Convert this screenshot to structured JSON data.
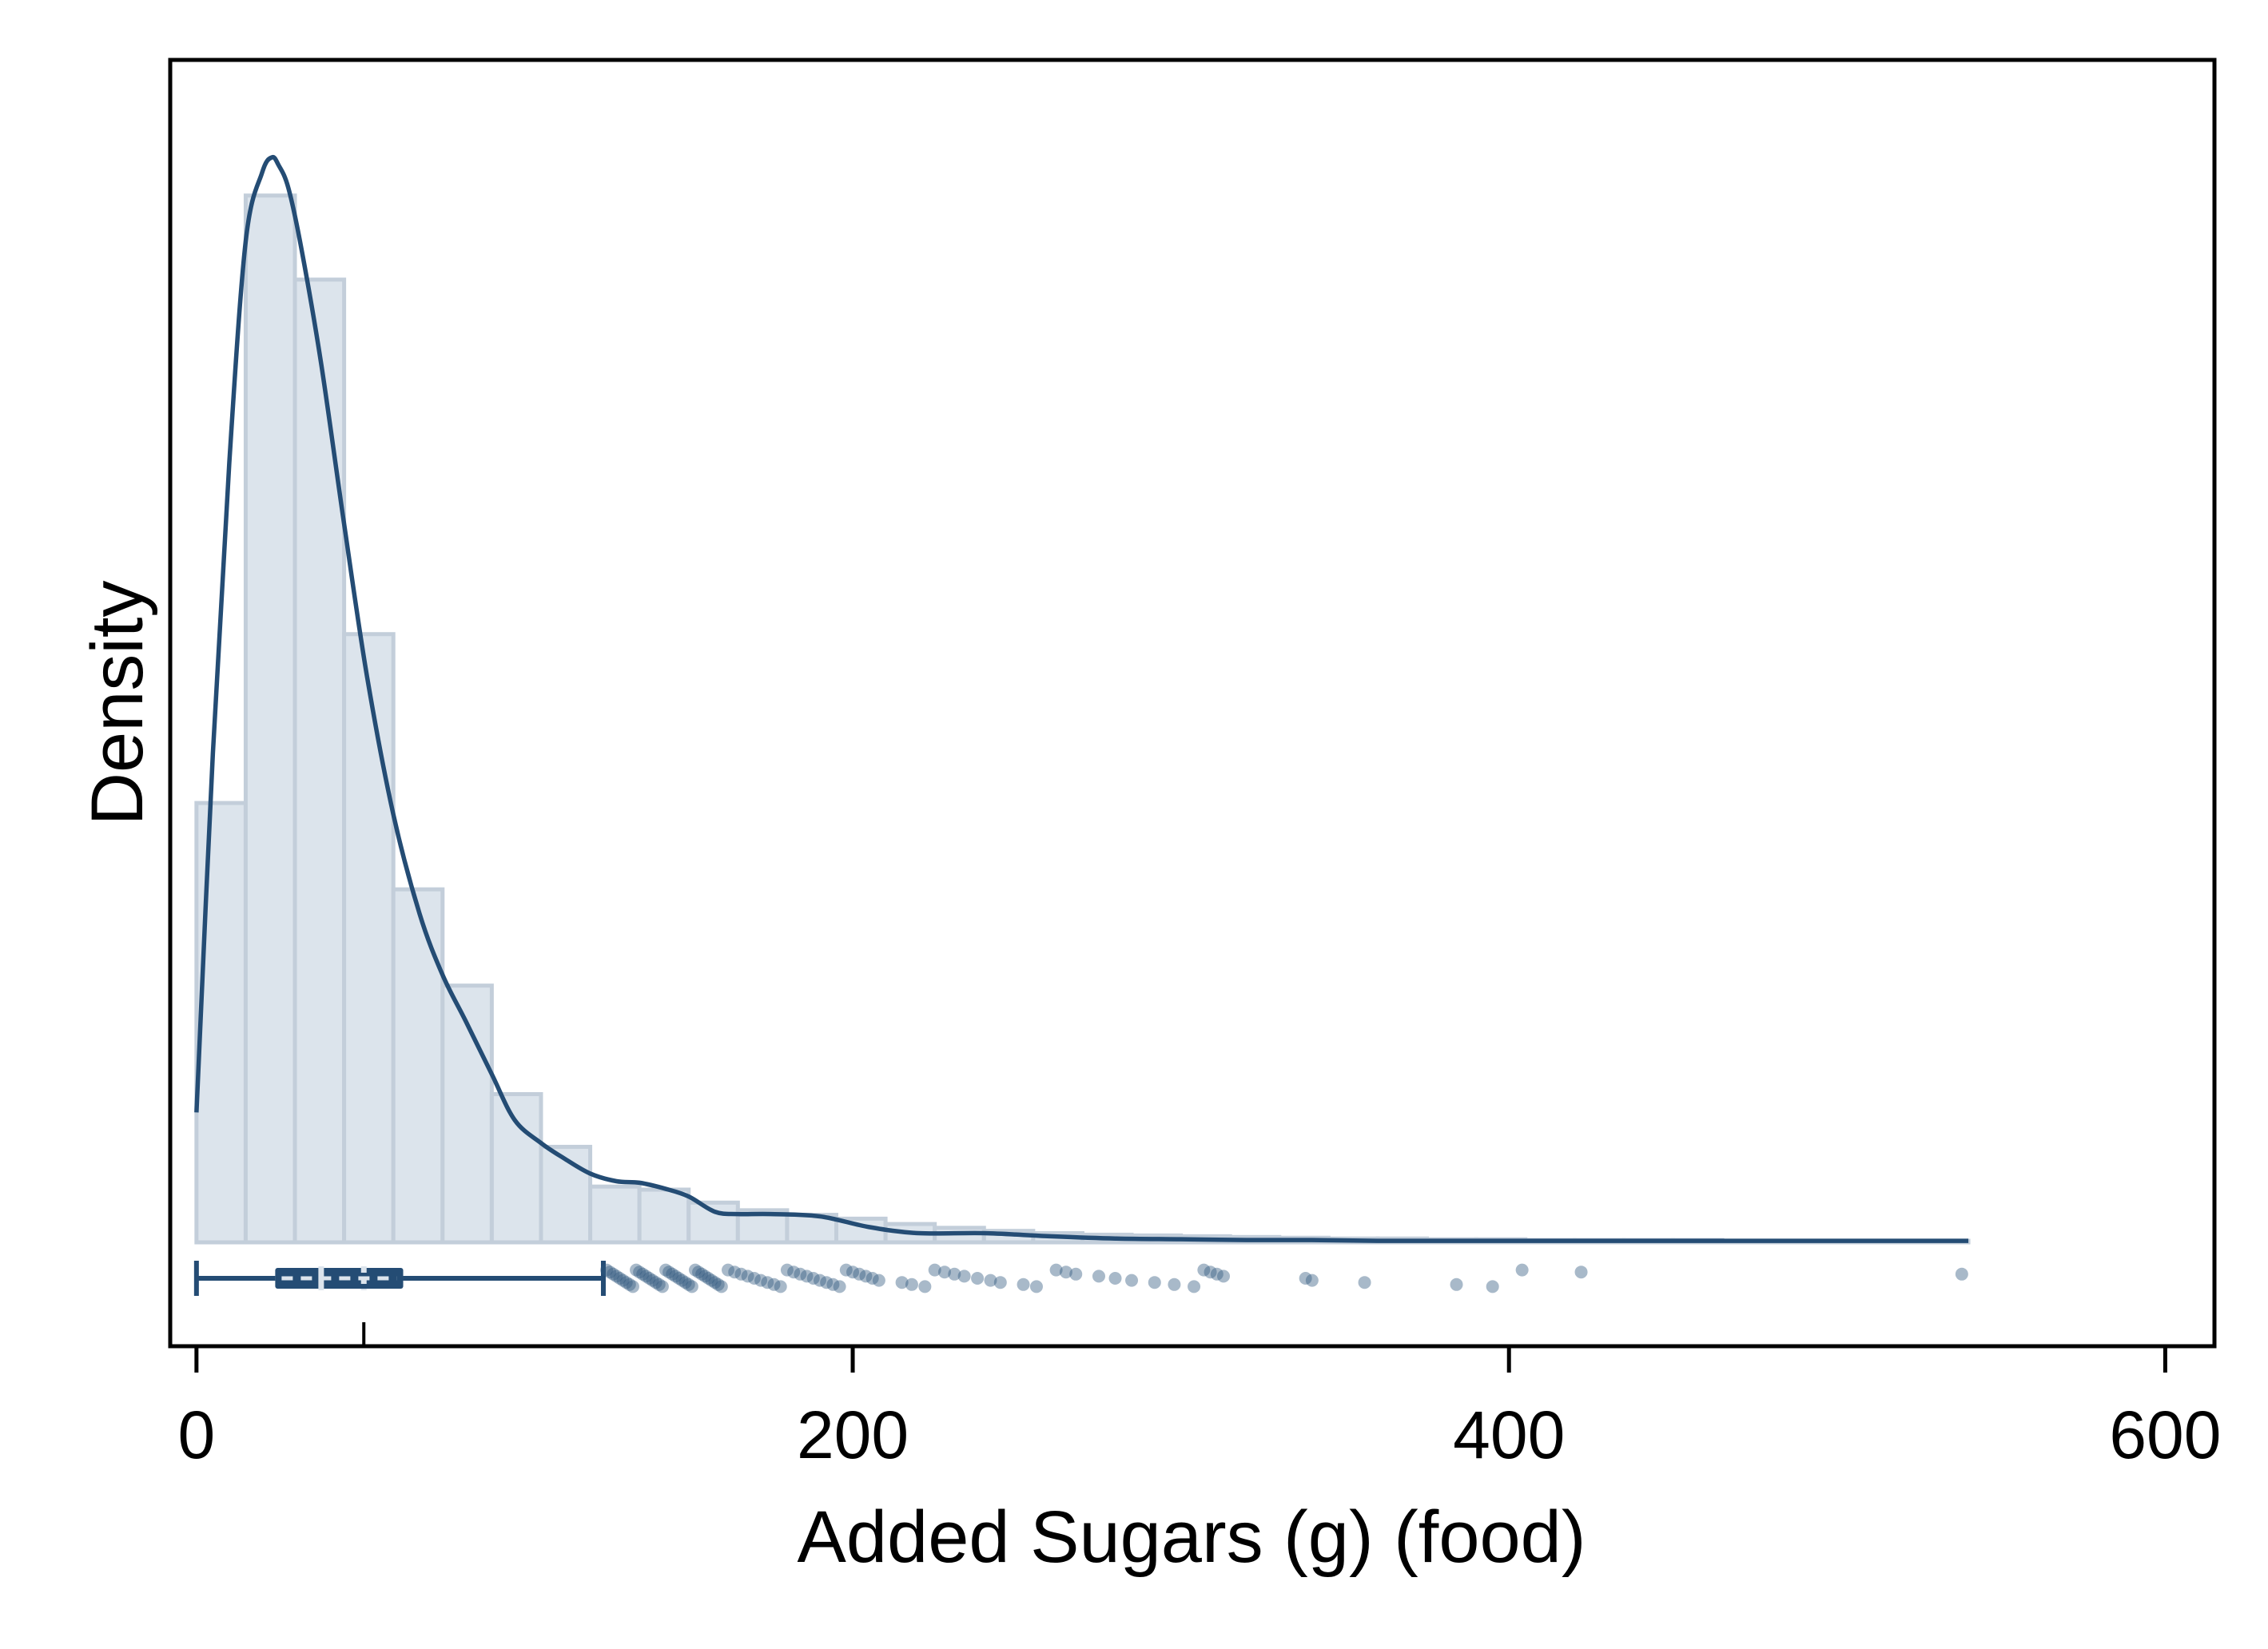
{
  "chart_data": {
    "type": "histogram",
    "title": "",
    "xlabel": "Added Sugars (g) (food)",
    "ylabel": "Density",
    "xlim": [
      -8,
      615
    ],
    "x_ticks": [
      0,
      200,
      400,
      600
    ],
    "x_tick_labels": [
      "0",
      "200",
      "400",
      "600"
    ],
    "y_ticks_shown": false,
    "grid": false,
    "colors": {
      "bar_fill": "#dce4ec",
      "bar_stroke": "#c3ceda",
      "line": "#244c74",
      "outlier": "#2f577f"
    },
    "histogram": {
      "bin_edges": [
        0,
        15,
        30,
        45,
        60,
        75,
        90,
        105,
        120,
        135,
        150,
        165,
        180,
        195,
        210,
        225,
        240,
        255,
        270,
        285,
        300,
        315,
        330,
        345,
        360,
        375,
        390,
        405,
        420,
        435,
        450,
        465,
        480,
        495,
        510,
        525,
        540
      ],
      "density": [
        0.00575,
        0.0137,
        0.0126,
        0.00796,
        0.00462,
        0.00336,
        0.00194,
        0.00125,
        0.00073,
        0.00069,
        0.00052,
        0.00042,
        0.00036,
        0.00031,
        0.00024,
        0.00019,
        0.00015,
        0.00012,
        0.0001,
        9e-05,
        8e-05,
        7e-05,
        6e-05,
        5e-05,
        5e-05,
        4e-05,
        4e-05,
        3e-05,
        3e-05,
        3e-05,
        3e-05,
        2e-05,
        2e-05,
        2e-05,
        2e-05,
        2e-05
      ]
    },
    "kde": {
      "x": [
        0,
        5,
        10,
        15,
        20,
        23,
        25,
        28,
        32,
        38,
        45,
        52,
        60,
        68,
        75,
        82,
        90,
        97,
        105,
        112,
        120,
        128,
        135,
        143,
        150,
        158,
        165,
        175,
        190,
        205,
        220,
        240,
        260,
        280,
        300,
        320,
        340,
        360,
        380,
        400,
        420,
        440,
        480,
        520,
        540
      ],
      "y": [
        0.0017,
        0.0064,
        0.0102,
        0.0131,
        0.014,
        0.0142,
        0.0141,
        0.0138,
        0.013,
        0.0115,
        0.0094,
        0.0074,
        0.0056,
        0.0043,
        0.0035,
        0.0029,
        0.0022,
        0.0016,
        0.0013,
        0.0011,
        0.0009,
        0.0008,
        0.00078,
        0.0007,
        0.0006,
        0.0004,
        0.00037,
        0.00037,
        0.00034,
        0.0002,
        0.00012,
        0.00012,
        8e-05,
        5e-05,
        4e-05,
        3e-05,
        3e-05,
        2e-05,
        2e-05,
        2e-05,
        2e-05,
        2e-05,
        2e-05,
        2e-05,
        2e-05
      ]
    },
    "y_max": 0.0149,
    "boxplot": {
      "whisker_low": 0,
      "q1": 24,
      "median": 38,
      "mean": 51,
      "q3": 63,
      "whisker_high": 124
    },
    "outliers": [
      125,
      126,
      127,
      128,
      129,
      130,
      131,
      132,
      133,
      134,
      135,
      136,
      137,
      138,
      139,
      140,
      141,
      142,
      143,
      144,
      145,
      146,
      147,
      148,
      149,
      150,
      151,
      152,
      153,
      154,
      155,
      156,
      157,
      158,
      159,
      160,
      162,
      164,
      166,
      168,
      170,
      172,
      174,
      176,
      178,
      180,
      182,
      184,
      186,
      188,
      190,
      192,
      194,
      196,
      198,
      200,
      202,
      204,
      206,
      208,
      215,
      218,
      222,
      225,
      228,
      231,
      234,
      238,
      242,
      245,
      252,
      256,
      262,
      265,
      268,
      275,
      280,
      285,
      292,
      298,
      304,
      307,
      309,
      311,
      313,
      338,
      340,
      356,
      384,
      395,
      404,
      422,
      538
    ]
  }
}
